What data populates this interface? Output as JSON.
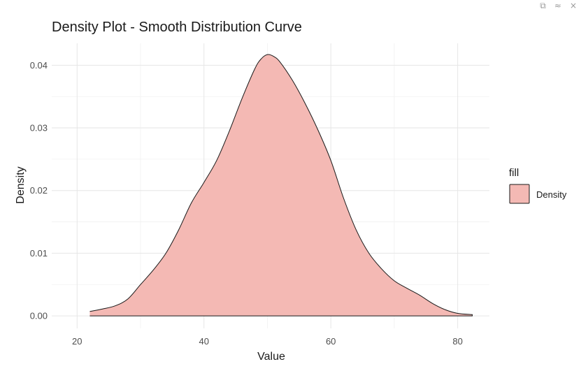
{
  "viewer": {
    "controls": [
      "⧉",
      "≈",
      "×"
    ]
  },
  "chart_data": {
    "type": "area",
    "title": "Density Plot - Smooth Distribution Curve",
    "xlabel": "Value",
    "ylabel": "Density",
    "xlim": [
      16,
      85
    ],
    "ylim": [
      -0.002,
      0.0435
    ],
    "x_ticks": [
      20,
      40,
      60,
      80
    ],
    "y_ticks": [
      0.0,
      0.01,
      0.02,
      0.03,
      0.04
    ],
    "y_tick_labels": [
      "0.00",
      "0.01",
      "0.02",
      "0.03",
      "0.04"
    ],
    "grid": true,
    "legend": {
      "title": "fill",
      "position": "right",
      "entries": [
        "Density"
      ]
    },
    "colors": {
      "fill": "#f4b9b4",
      "stroke": "#1a1a1a"
    },
    "series": [
      {
        "name": "Density",
        "x": [
          22,
          24,
          26,
          28,
          30,
          32,
          34,
          36,
          38,
          40,
          42,
          44,
          46,
          48,
          49,
          50,
          51,
          52,
          54,
          56,
          58,
          60,
          62,
          64,
          66,
          68,
          70,
          72,
          74,
          76,
          78,
          80,
          82.3
        ],
        "y": [
          0.0007,
          0.0011,
          0.0016,
          0.0027,
          0.005,
          0.0073,
          0.01,
          0.0137,
          0.018,
          0.0213,
          0.0248,
          0.0295,
          0.0347,
          0.0394,
          0.041,
          0.0417,
          0.0414,
          0.0405,
          0.0375,
          0.0338,
          0.0296,
          0.0248,
          0.0188,
          0.0137,
          0.01,
          0.0075,
          0.0056,
          0.0044,
          0.0033,
          0.002,
          0.001,
          0.0004,
          0.0002
        ]
      }
    ]
  }
}
